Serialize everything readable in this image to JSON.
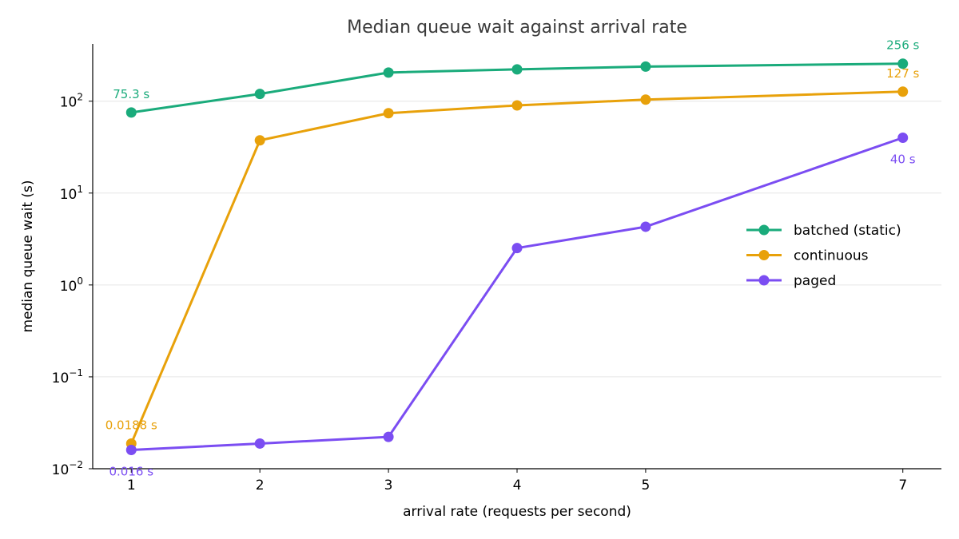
{
  "chart_data": {
    "type": "line",
    "title": "Median queue wait against arrival rate",
    "xlabel": "arrival rate (requests per second)",
    "ylabel": "median queue wait (s)",
    "x": [
      1,
      2,
      3,
      4,
      5,
      7
    ],
    "y_scale": "log",
    "ylim": [
      0.01,
      420
    ],
    "xlim": [
      0.7,
      7.3
    ],
    "grid": "horizontal",
    "legend_position": "center-right",
    "y_ticks": [
      {
        "base": "10",
        "exp": "−2",
        "value": 0.01
      },
      {
        "base": "10",
        "exp": "−1",
        "value": 0.1
      },
      {
        "base": "10",
        "exp": "0",
        "value": 1
      },
      {
        "base": "10",
        "exp": "1",
        "value": 10
      },
      {
        "base": "10",
        "exp": "2",
        "value": 100
      }
    ],
    "x_tick_labels": [
      "1",
      "2",
      "3",
      "4",
      "5",
      "7"
    ],
    "series": [
      {
        "name": "batched (static)",
        "color": "#1aab7b",
        "values": [
          75.3,
          120,
          205,
          222,
          238,
          256
        ],
        "labels": [
          {
            "index": 0,
            "text": "75.3 s",
            "pos": "above"
          },
          {
            "index": 5,
            "text": "256 s",
            "pos": "above"
          }
        ]
      },
      {
        "name": "continuous",
        "color": "#e8a10a",
        "values": [
          0.0188,
          37.5,
          74,
          90,
          104,
          127
        ],
        "labels": [
          {
            "index": 0,
            "text": "0.0188 s",
            "pos": "above"
          },
          {
            "index": 5,
            "text": "127 s",
            "pos": "above"
          }
        ]
      },
      {
        "name": "paged",
        "color": "#7b4df2",
        "values": [
          0.016,
          0.0188,
          0.0222,
          2.52,
          4.3,
          40
        ],
        "labels": [
          {
            "index": 0,
            "text": "0.016 s",
            "pos": "below"
          },
          {
            "index": 5,
            "text": "40 s",
            "pos": "below"
          }
        ]
      }
    ]
  }
}
